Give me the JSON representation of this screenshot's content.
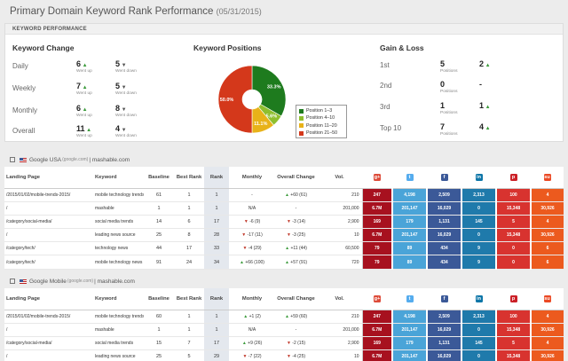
{
  "header": {
    "title": "Primary Domain Keyword Rank Performance",
    "date": "(05/31/2015)"
  },
  "kp": {
    "heading": "KEYWORD PERFORMANCE",
    "change_title": "Keyword Change",
    "positions_title": "Keyword Positions",
    "gainloss_title": "Gain & Loss",
    "change_rows": [
      {
        "label": "Daily",
        "up": "6",
        "up_sub": "Went up",
        "down": "5",
        "down_sub": "Went down"
      },
      {
        "label": "Weekly",
        "up": "7",
        "up_sub": "Went up",
        "down": "5",
        "down_sub": "Went down"
      },
      {
        "label": "Monthly",
        "up": "6",
        "up_sub": "Went up",
        "down": "8",
        "down_sub": "Went down"
      },
      {
        "label": "Overall",
        "up": "11",
        "up_sub": "Went up",
        "down": "4",
        "down_sub": "Went down"
      }
    ],
    "pie_labels": [
      "33.3%",
      "5.6%",
      "11.1%",
      "50.0%"
    ],
    "legend": [
      {
        "label": "Position 1–3",
        "color": "#1e7b1e"
      },
      {
        "label": "Position 4–10",
        "color": "#8fbf2e"
      },
      {
        "label": "Position 11–20",
        "color": "#e8b219"
      },
      {
        "label": "Position 21–50",
        "color": "#d4381b"
      }
    ],
    "gain_rows": [
      {
        "label": "1st",
        "positions": "5",
        "positions_sub": "Positions",
        "change": "2",
        "change_dir": "up"
      },
      {
        "label": "2nd",
        "positions": "0",
        "positions_sub": "Positions",
        "change": "-",
        "change_dir": "none"
      },
      {
        "label": "3rd",
        "positions": "1",
        "positions_sub": "Positions",
        "change": "1",
        "change_dir": "up"
      },
      {
        "label": "Top 10",
        "positions": "7",
        "positions_sub": "Positions",
        "change": "4",
        "change_dir": "up"
      }
    ]
  },
  "chart_data": {
    "type": "pie",
    "title": "Keyword Positions",
    "series": [
      {
        "name": "Position 1–3",
        "value": 33.3
      },
      {
        "name": "Position 4–10",
        "value": 5.6
      },
      {
        "name": "Position 11–20",
        "value": 11.1
      },
      {
        "name": "Position 21–50",
        "value": 50.0
      }
    ]
  },
  "columns": [
    "Landing Page",
    "Keyword",
    "Baseline",
    "Best Rank",
    "Rank",
    "Monthly",
    "Overall Change",
    "Vol."
  ],
  "social_icons": [
    {
      "name": "google-plus-icon",
      "glyph": "g+",
      "color": "#dd4b39"
    },
    {
      "name": "twitter-icon",
      "glyph": "t",
      "color": "#55acee"
    },
    {
      "name": "facebook-icon",
      "glyph": "f",
      "color": "#3b5998"
    },
    {
      "name": "linkedin-icon",
      "glyph": "in",
      "color": "#0e76a8"
    },
    {
      "name": "pinterest-icon",
      "glyph": "p",
      "color": "#cb2027"
    },
    {
      "name": "stumbleupon-icon",
      "glyph": "su",
      "color": "#eb4924"
    }
  ],
  "sections": [
    {
      "engine": "Google USA",
      "engine_domain": "(google.com)",
      "sep": "|",
      "site": "mashable.com",
      "rows": [
        {
          "page": "/2015/01/02/mobile-trends-2015/",
          "keyword": "mobile technology trends",
          "baseline": "61",
          "best": "1",
          "rank": "1",
          "monthly": "-",
          "monthly_dir": "none",
          "overall": "+60 (61)",
          "overall_dir": "up",
          "vol": "210",
          "s": [
            "247",
            "4,198",
            "2,509",
            "2,313",
            "100",
            "4"
          ]
        },
        {
          "page": "/",
          "keyword": "mashable",
          "baseline": "1",
          "best": "1",
          "rank": "1",
          "monthly": "N/A",
          "monthly_dir": "none",
          "overall": "-",
          "overall_dir": "none",
          "vol": "201,000",
          "s": [
            "6.7M",
            "201,147",
            "16,029",
            "0",
            "15,348",
            "30,926"
          ]
        },
        {
          "page": "/category/social-media/",
          "keyword": "social media trends",
          "baseline": "14",
          "best": "6",
          "rank": "17",
          "monthly": "-6 (9)",
          "monthly_dir": "down",
          "overall": "-3 (14)",
          "overall_dir": "down",
          "vol": "2,900",
          "s": [
            "169",
            "179",
            "1,131",
            "145",
            "5",
            "4"
          ]
        },
        {
          "page": "/",
          "keyword": "leading news source",
          "baseline": "25",
          "best": "8",
          "rank": "28",
          "monthly": "-17 (11)",
          "monthly_dir": "down",
          "overall": "-3 (25)",
          "overall_dir": "down",
          "vol": "10",
          "s": [
            "6.7M",
            "201,147",
            "16,029",
            "0",
            "15,348",
            "30,926"
          ]
        },
        {
          "page": "/category/tech/",
          "keyword": "technology news",
          "baseline": "44",
          "best": "17",
          "rank": "33",
          "monthly": "-4 (29)",
          "monthly_dir": "down",
          "overall": "+11 (44)",
          "overall_dir": "up",
          "vol": "60,500",
          "s": [
            "79",
            "89",
            "434",
            "9",
            "0",
            "6"
          ]
        },
        {
          "page": "/category/tech/",
          "keyword": "mobile technology news",
          "baseline": "91",
          "best": "24",
          "rank": "34",
          "monthly": "+66 (100)",
          "monthly_dir": "up",
          "overall": "+57 (91)",
          "overall_dir": "up",
          "vol": "720",
          "s": [
            "79",
            "89",
            "434",
            "9",
            "0",
            "6"
          ]
        }
      ]
    },
    {
      "engine": "Google Mobile",
      "engine_domain": "(google.com)",
      "sep": "|",
      "site": "mashable.com",
      "rows": [
        {
          "page": "/2015/01/02/mobile-trends-2015/",
          "keyword": "mobile technology trends",
          "baseline": "60",
          "best": "1",
          "rank": "1",
          "monthly": "+1 (2)",
          "monthly_dir": "up",
          "overall": "+59 (60)",
          "overall_dir": "up",
          "vol": "210",
          "s": [
            "247",
            "4,198",
            "2,509",
            "2,313",
            "100",
            "4"
          ]
        },
        {
          "page": "/",
          "keyword": "mashable",
          "baseline": "1",
          "best": "1",
          "rank": "1",
          "monthly": "N/A",
          "monthly_dir": "none",
          "overall": "-",
          "overall_dir": "none",
          "vol": "201,000",
          "s": [
            "6.7M",
            "201,147",
            "16,029",
            "0",
            "15,348",
            "30,926"
          ]
        },
        {
          "page": "/category/social-media/",
          "keyword": "social media trends",
          "baseline": "15",
          "best": "7",
          "rank": "17",
          "monthly": "+9 (26)",
          "monthly_dir": "up",
          "overall": "-2 (15)",
          "overall_dir": "down",
          "vol": "2,900",
          "s": [
            "169",
            "179",
            "1,131",
            "145",
            "5",
            "4"
          ]
        },
        {
          "page": "/",
          "keyword": "leading news source",
          "baseline": "25",
          "best": "5",
          "rank": "29",
          "monthly": "-7 (22)",
          "monthly_dir": "down",
          "overall": "-4 (25)",
          "overall_dir": "down",
          "vol": "10",
          "s": [
            "6.7M",
            "201,147",
            "16,029",
            "0",
            "15,348",
            "30,926"
          ]
        }
      ]
    }
  ]
}
